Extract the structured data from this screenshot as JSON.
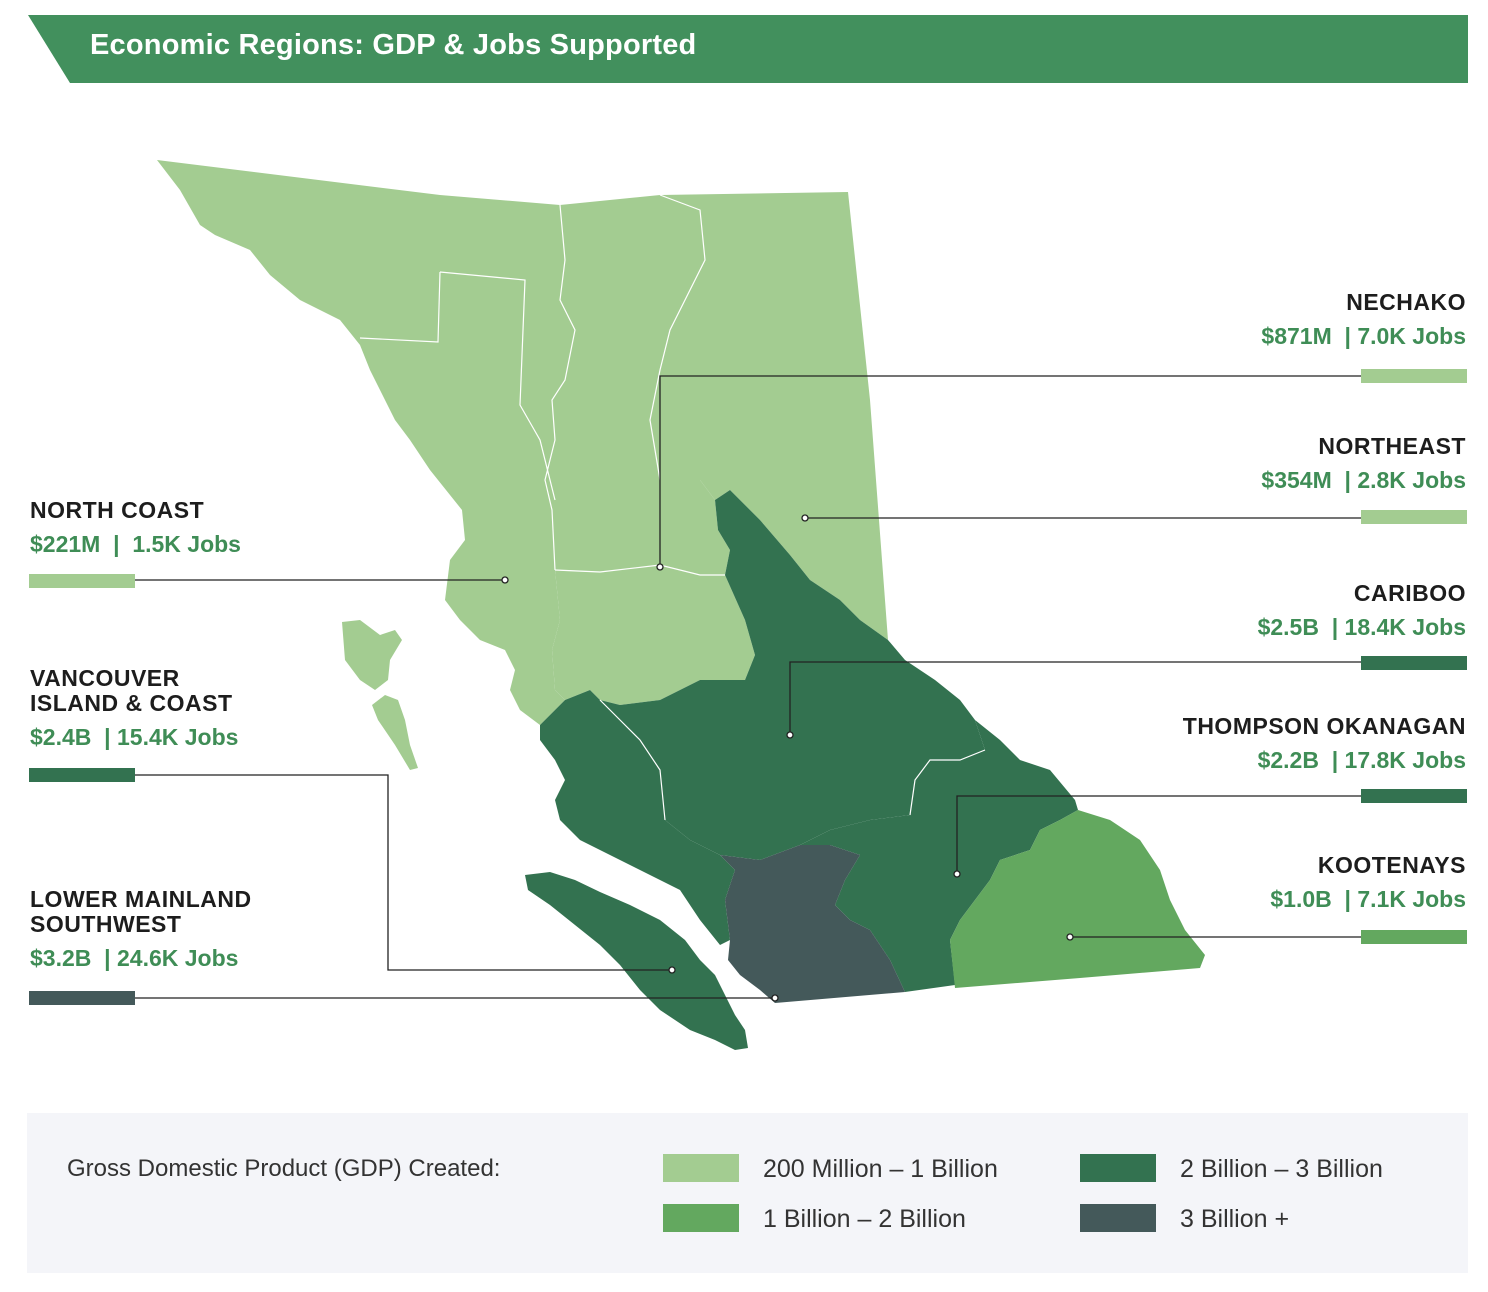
{
  "title": "Economic Regions: GDP & Jobs Supported",
  "colors": {
    "banner": "#42905d",
    "tier_200m_1b": "#a3cc91",
    "tier_1b_2b": "#63a85f",
    "tier_2b_3b": "#337250",
    "tier_3b_plus": "#44595a",
    "value_text": "#3f8d56"
  },
  "regions": {
    "nechako": {
      "name": "NECHAKO",
      "stats": "$871M  | 7.0K Jobs",
      "tier": "tier_200m_1b"
    },
    "northeast": {
      "name": "NORTHEAST",
      "stats": "$354M  | 2.8K Jobs",
      "tier": "tier_200m_1b"
    },
    "north_coast": {
      "name": "NORTH COAST",
      "stats": "$221M  |  1.5K Jobs",
      "tier": "tier_200m_1b"
    },
    "cariboo": {
      "name": "CARIBOO",
      "stats": "$2.5B  | 18.4K Jobs",
      "tier": "tier_2b_3b"
    },
    "vancouver_island": {
      "name_line1": "VANCOUVER",
      "name_line2": "ISLAND & COAST",
      "stats": "$2.4B  | 15.4K Jobs",
      "tier": "tier_2b_3b"
    },
    "thompson_okanagan": {
      "name": "THOMPSON OKANAGAN",
      "stats": "$2.2B  | 17.8K Jobs",
      "tier": "tier_2b_3b"
    },
    "kootenays": {
      "name": "KOOTENAYS",
      "stats": "$1.0B  | 7.1K Jobs",
      "tier": "tier_1b_2b"
    },
    "lower_mainland": {
      "name_line1": "LOWER MAINLAND",
      "name_line2": "SOUTHWEST",
      "stats": "$3.2B  | 24.6K Jobs",
      "tier": "tier_3b_plus"
    }
  },
  "legend": {
    "title": "Gross Domestic Product (GDP) Created:",
    "items": [
      {
        "label": "200 Million – 1 Billion",
        "color": "#a3cc91"
      },
      {
        "label": "1 Billion – 2 Billion",
        "color": "#63a85f"
      },
      {
        "label": "2 Billion – 3 Billion",
        "color": "#337250"
      },
      {
        "label": "3 Billion +",
        "color": "#44595a"
      }
    ]
  }
}
